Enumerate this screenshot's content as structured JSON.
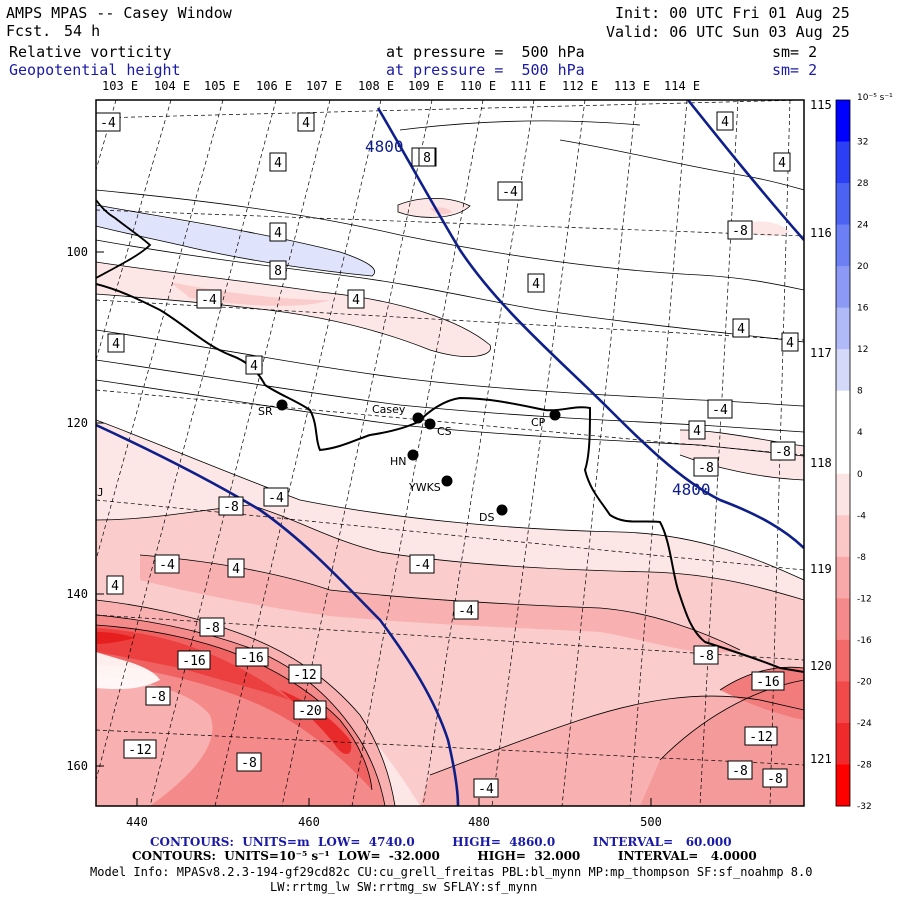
{
  "header": {
    "title": "AMPS MPAS -- Casey Window",
    "forecast_label": "Fcst.",
    "forecast_value": "54 h",
    "init": "Init: 00 UTC Fri 01 Aug 25",
    "valid": "Valid: 06 UTC Sun 03 Aug 25",
    "field1": {
      "name": "Relative vorticity",
      "level": "at pressure =  500 hPa",
      "smooth": "sm= 2"
    },
    "field2": {
      "name": "Geopotential height",
      "level": "at pressure =  500 hPa",
      "smooth": "sm= 2"
    }
  },
  "map": {
    "lon_top_labels": [
      "103 E",
      "104 E",
      "105 E",
      "106 E",
      "107 E",
      "108 E",
      "109 E",
      "110 E",
      "111 E",
      "112 E",
      "113 E",
      "114 E"
    ],
    "lon_right_labels": [
      "115 E",
      "116 E",
      "117 E",
      "118 E",
      "119 E",
      "120 E",
      "121 E"
    ],
    "y_axis_labels": [
      "100",
      "120",
      "140",
      "160"
    ],
    "x_axis_labels": [
      "440",
      "460",
      "480",
      "500"
    ],
    "left_edge_marker": "J",
    "height_contours": [
      {
        "label": "4800"
      },
      {
        "label": "4800"
      }
    ],
    "stations": [
      {
        "name": "SR"
      },
      {
        "name": "Casey"
      },
      {
        "name": "CS"
      },
      {
        "name": "CP"
      },
      {
        "name": "HN"
      },
      {
        "name": "YWKS"
      },
      {
        "name": "DS"
      }
    ],
    "vorticity_labels": [
      "-4",
      "4",
      "4",
      "-4",
      "4",
      "-4",
      "4",
      "8",
      "4",
      "8",
      "-8",
      "-4",
      "4",
      "4",
      "4",
      "4",
      "4",
      "4",
      "-4",
      "4",
      "-8",
      "-4",
      "-8",
      "-8",
      "-4",
      "4",
      "-4",
      "-4",
      "-8",
      "-16",
      "-16",
      "-12",
      "-8",
      "-20",
      "-12",
      "-8",
      "-4",
      "-8",
      "-16",
      "-12",
      "-8",
      "-8",
      "4"
    ],
    "colors": {
      "geopotential_contour": "#0f1f8a",
      "vorticity_contour": "#000000",
      "coast": "#000000"
    }
  },
  "colorbar": {
    "unit": "10⁻⁵ s⁻¹",
    "ticks": [
      "32",
      "28",
      "24",
      "20",
      "16",
      "12",
      "8",
      "4",
      "0",
      "-4",
      "-8",
      "-12",
      "-16",
      "-20",
      "-24",
      "-28",
      "-32"
    ],
    "colors": [
      "#0000ff",
      "#2b3ff5",
      "#4b62f2",
      "#6c7ff4",
      "#8c9af6",
      "#b0baf8",
      "#d4d9fa",
      "#ffffff",
      "#ffffff",
      "#fde4e4",
      "#fbc7c7",
      "#f8a8a8",
      "#f68989",
      "#f46a6a",
      "#f24a4a",
      "#f02a2a",
      "#ff0000"
    ]
  },
  "footer": {
    "contours1": "CONTOURS:  UNITS=m  LOW=  4740.0         HIGH=  4860.0         INTERVAL=   60.000",
    "contours2": "CONTOURS:  UNITS=10⁻⁵ s⁻¹  LOW=  -32.000         HIGH=  32.000         INTERVAL=   4.0000",
    "model1": "Model Info: MPASv8.2.3-194-gf29cd82c CU:cu_grell_freitas PBL:bl_mynn MP:mp_thompson SF:sf_noahmp 8.0",
    "model2": "LW:rrtmg_lw SW:rrtmg_sw SFLAY:sf_mynn"
  }
}
